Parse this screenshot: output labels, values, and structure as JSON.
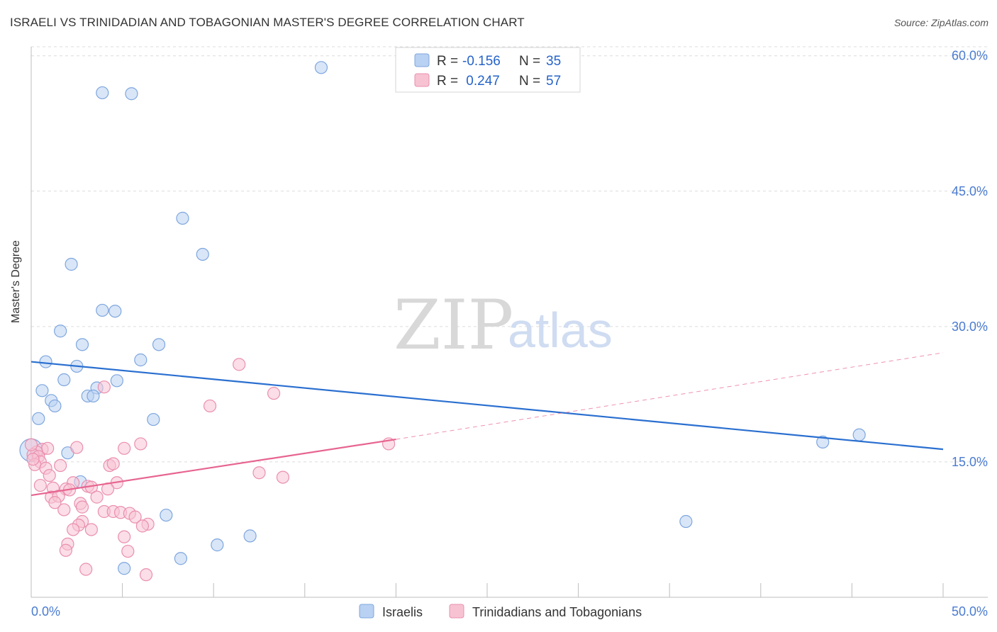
{
  "title": "ISRAELI VS TRINIDADIAN AND TOBAGONIAN MASTER'S DEGREE CORRELATION CHART",
  "source": "Source: ZipAtlas.com",
  "watermark": {
    "zip": "ZIP",
    "atlas": "atlas"
  },
  "colors": {
    "blue_fill": "#b9d1f2",
    "blue_stroke": "#7ea6de",
    "blue_line": "#2a6fd0",
    "pink_fill": "#f7c3d3",
    "pink_stroke": "#ea8fae",
    "pink_line": "#e7648f",
    "grid": "#dcdcdc",
    "tick": "#4a7bd0"
  },
  "legend": {
    "rows": [
      {
        "r_label": "R =",
        "r_value": "-0.156",
        "n_label": "N =",
        "n_value": "35",
        "series": "blue"
      },
      {
        "r_label": "R =",
        "r_value": " 0.247",
        "n_label": "N =",
        "n_value": "57",
        "series": "pink"
      }
    ]
  },
  "bottom_legend": [
    {
      "label": "Israelis",
      "series": "blue"
    },
    {
      "label": "Trinidadians and Tobagonians",
      "series": "pink"
    }
  ],
  "chart_data": {
    "type": "scatter",
    "title": "ISRAELI VS TRINIDADIAN AND TOBAGONIAN MASTER'S DEGREE CORRELATION CHART",
    "xlabel": "",
    "ylabel": "Master's Degree",
    "xlim": [
      0,
      50
    ],
    "ylim": [
      0,
      61
    ],
    "x_tick_labels": [
      "0.0%",
      "50.0%"
    ],
    "y_ticks": [
      15,
      30,
      45,
      60
    ],
    "y_tick_labels": [
      "15.0%",
      "30.0%",
      "45.0%",
      "60.0%"
    ],
    "series": [
      {
        "name": "Israelis",
        "color": "blue",
        "r": -0.156,
        "n": 35,
        "trend": {
          "x": [
            0,
            50
          ],
          "y": [
            26.1,
            16.4
          ]
        },
        "points": [
          [
            15.9,
            58.7
          ],
          [
            3.9,
            55.9
          ],
          [
            5.5,
            55.8
          ],
          [
            8.3,
            42.0
          ],
          [
            9.4,
            38.0
          ],
          [
            2.2,
            36.9
          ],
          [
            3.9,
            31.8
          ],
          [
            4.6,
            31.7
          ],
          [
            1.6,
            29.5
          ],
          [
            2.8,
            28.0
          ],
          [
            7.0,
            28.0
          ],
          [
            6.0,
            26.3
          ],
          [
            0.8,
            26.1
          ],
          [
            2.5,
            25.6
          ],
          [
            1.8,
            24.1
          ],
          [
            4.7,
            24.0
          ],
          [
            3.6,
            23.2
          ],
          [
            0.6,
            22.9
          ],
          [
            3.1,
            22.3
          ],
          [
            3.4,
            22.3
          ],
          [
            1.1,
            21.8
          ],
          [
            1.3,
            21.2
          ],
          [
            0.4,
            19.8
          ],
          [
            6.7,
            19.7
          ],
          [
            0.0,
            16.3
          ],
          [
            2.0,
            16.0
          ],
          [
            2.7,
            12.8
          ],
          [
            45.4,
            18.0
          ],
          [
            43.4,
            17.2
          ],
          [
            7.4,
            9.1
          ],
          [
            35.9,
            8.4
          ],
          [
            10.2,
            5.8
          ],
          [
            12.0,
            6.8
          ],
          [
            8.2,
            4.3
          ],
          [
            5.1,
            3.2
          ]
        ]
      },
      {
        "name": "Trinidadians and Tobagonians",
        "color": "pink",
        "r": 0.247,
        "n": 57,
        "trend": {
          "x": [
            0,
            20
          ],
          "y": [
            11.3,
            17.5
          ]
        },
        "trend_ext": {
          "x": [
            20,
            50
          ],
          "y": [
            17.5,
            27.1
          ]
        },
        "points": [
          [
            11.4,
            25.8
          ],
          [
            4.0,
            23.3
          ],
          [
            13.3,
            22.6
          ],
          [
            9.8,
            21.2
          ],
          [
            19.6,
            17.0
          ],
          [
            6.0,
            17.0
          ],
          [
            2.5,
            16.6
          ],
          [
            5.1,
            16.5
          ],
          [
            0.6,
            16.4
          ],
          [
            0.9,
            16.5
          ],
          [
            0.3,
            16.1
          ],
          [
            0.1,
            15.8
          ],
          [
            0.4,
            15.6
          ],
          [
            0.5,
            15.0
          ],
          [
            0.2,
            14.7
          ],
          [
            0.8,
            14.3
          ],
          [
            4.3,
            14.6
          ],
          [
            4.5,
            14.8
          ],
          [
            1.6,
            14.6
          ],
          [
            12.5,
            13.8
          ],
          [
            13.8,
            13.3
          ],
          [
            1.0,
            13.5
          ],
          [
            4.7,
            12.7
          ],
          [
            2.3,
            12.7
          ],
          [
            0.5,
            12.4
          ],
          [
            1.9,
            12.0
          ],
          [
            1.2,
            12.1
          ],
          [
            2.1,
            11.9
          ],
          [
            3.1,
            12.3
          ],
          [
            3.3,
            12.2
          ],
          [
            4.2,
            12.0
          ],
          [
            1.1,
            11.1
          ],
          [
            1.5,
            11.2
          ],
          [
            1.3,
            10.5
          ],
          [
            3.6,
            11.1
          ],
          [
            2.7,
            10.4
          ],
          [
            2.8,
            10.0
          ],
          [
            1.8,
            9.7
          ],
          [
            4.0,
            9.5
          ],
          [
            4.5,
            9.5
          ],
          [
            4.9,
            9.4
          ],
          [
            5.4,
            9.3
          ],
          [
            5.7,
            8.9
          ],
          [
            2.8,
            8.4
          ],
          [
            2.6,
            8.0
          ],
          [
            6.4,
            8.1
          ],
          [
            6.1,
            7.9
          ],
          [
            2.3,
            7.5
          ],
          [
            3.3,
            7.5
          ],
          [
            5.1,
            6.7
          ],
          [
            2.0,
            5.9
          ],
          [
            5.3,
            5.1
          ],
          [
            1.9,
            5.2
          ],
          [
            3.0,
            3.1
          ],
          [
            6.3,
            2.5
          ],
          [
            0.0,
            16.9
          ],
          [
            0.1,
            15.3
          ]
        ]
      }
    ]
  }
}
